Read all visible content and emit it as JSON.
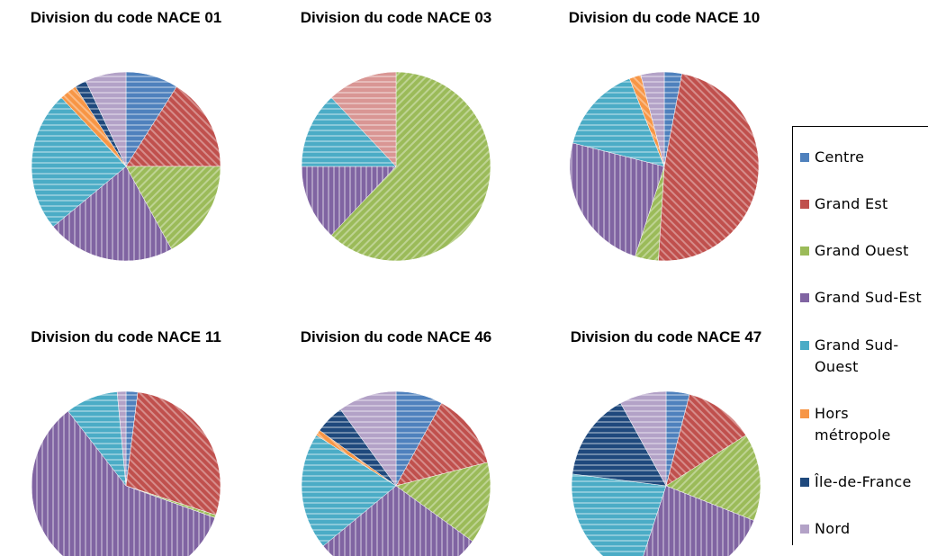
{
  "chart_data": [
    {
      "type": "pie",
      "title": "Division du code NACE 01",
      "categories": [
        "Centre",
        "Grand Est",
        "Grand Ouest",
        "Grand Sud-Est",
        "Grand Sud-Ouest",
        "Hors métropole",
        "Île-de-France",
        "Nord"
      ],
      "values": [
        9,
        16,
        17,
        22,
        24,
        3,
        2,
        7
      ],
      "colors": [
        "#4f81bd",
        "#c0504d",
        "#9bbb59",
        "#8064a2",
        "#4bacc6",
        "#f79646",
        "#1f497d",
        "#b3a2c7"
      ]
    },
    {
      "type": "pie",
      "title": "Division du code NACE 03",
      "categories": [
        "Centre",
        "Grand Est",
        "Grand Ouest",
        "Grand Sud-Est",
        "Grand Sud-Ouest",
        "Hors métropole",
        "Île-de-France",
        "Nord"
      ],
      "values": [
        0,
        0,
        62,
        13,
        13,
        0,
        0,
        12
      ],
      "colors": [
        "#4f81bd",
        "#c0504d",
        "#9bbb59",
        "#8064a2",
        "#4bacc6",
        "#f79646",
        "#1f497d",
        "#d99694"
      ]
    },
    {
      "type": "pie",
      "title": "Division du code NACE 10",
      "categories": [
        "Centre",
        "Grand Est",
        "Grand Ouest",
        "Grand Sud-Est",
        "Grand Sud-Ouest",
        "Hors métropole",
        "Île-de-France",
        "Nord"
      ],
      "values": [
        3,
        48,
        4,
        24,
        15,
        2,
        0,
        4
      ],
      "colors": [
        "#4f81bd",
        "#c0504d",
        "#9bbb59",
        "#8064a2",
        "#4bacc6",
        "#f79646",
        "#1f497d",
        "#b3a2c7"
      ]
    },
    {
      "type": "pie",
      "title": "Division du code NACE 11",
      "categories": [
        "Centre",
        "Grand Est",
        "Grand Ouest",
        "Grand Sud-Est",
        "Grand Sud-Ouest",
        "Hors métropole",
        "Île-de-France",
        "Nord"
      ],
      "values": [
        2,
        28,
        0.5,
        59,
        9,
        0,
        0,
        1.5
      ],
      "colors": [
        "#4f81bd",
        "#c0504d",
        "#9bbb59",
        "#8064a2",
        "#4bacc6",
        "#f79646",
        "#1f497d",
        "#b3a2c7"
      ]
    },
    {
      "type": "pie",
      "title": "Division du code NACE 46",
      "categories": [
        "Centre",
        "Grand Est",
        "Grand Ouest",
        "Grand Sud-Est",
        "Grand Sud-Ouest",
        "Hors métropole",
        "Île-de-France",
        "Nord"
      ],
      "values": [
        8,
        13,
        14,
        29,
        20,
        1,
        5,
        10
      ],
      "colors": [
        "#4f81bd",
        "#c0504d",
        "#9bbb59",
        "#8064a2",
        "#4bacc6",
        "#f79646",
        "#1f497d",
        "#b3a2c7"
      ]
    },
    {
      "type": "pie",
      "title": "Division du code NACE 47",
      "categories": [
        "Centre",
        "Grand Est",
        "Grand Ouest",
        "Grand Sud-Est",
        "Grand Sud-Ouest",
        "Hors métropole",
        "Île-de-France",
        "Nord"
      ],
      "values": [
        4,
        12,
        15,
        24,
        22,
        0,
        15,
        8
      ],
      "colors": [
        "#4f81bd",
        "#c0504d",
        "#9bbb59",
        "#8064a2",
        "#4bacc6",
        "#f79646",
        "#1f497d",
        "#b3a2c7"
      ]
    }
  ]
}
